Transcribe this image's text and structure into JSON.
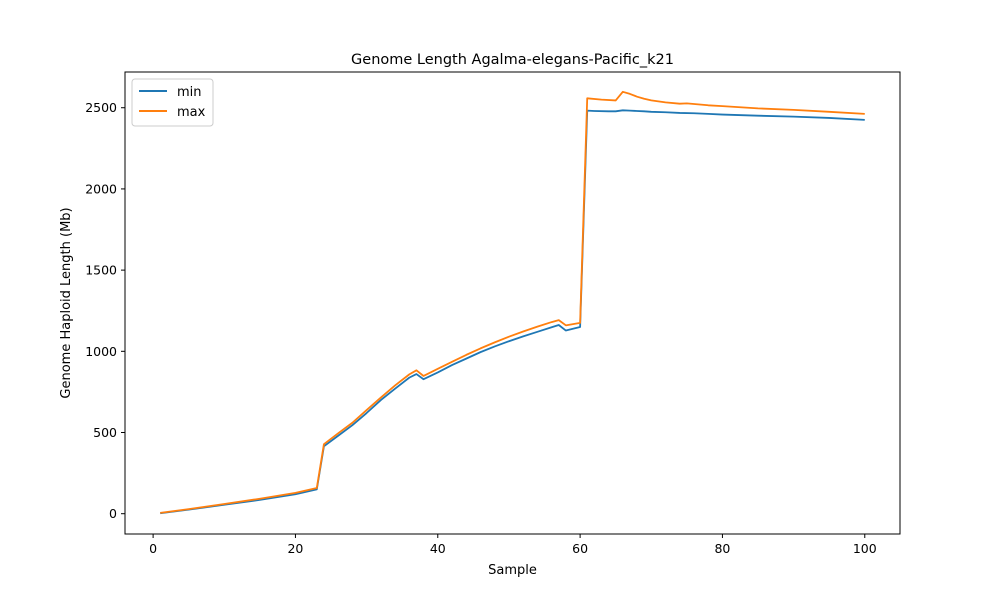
{
  "chart_data": {
    "type": "line",
    "title": "Genome Length Agalma-elegans-Pacific_k21",
    "xlabel": "Sample",
    "ylabel": "Genome Haploid Length (Mb)",
    "xlim": [
      -3.95,
      104.95
    ],
    "ylim": [
      -125,
      2720
    ],
    "xticks": [
      0,
      20,
      40,
      60,
      80,
      100
    ],
    "yticks": [
      0,
      500,
      1000,
      1500,
      2000,
      2500
    ],
    "legend": "top-left",
    "grid": false,
    "series": [
      {
        "name": "min",
        "color": "#1f77b4",
        "points": [
          [
            1,
            3
          ],
          [
            5,
            25
          ],
          [
            10,
            55
          ],
          [
            15,
            85
          ],
          [
            20,
            120
          ],
          [
            23,
            150
          ],
          [
            24,
            415
          ],
          [
            26,
            480
          ],
          [
            28,
            545
          ],
          [
            30,
            620
          ],
          [
            32,
            700
          ],
          [
            34,
            770
          ],
          [
            36,
            838
          ],
          [
            37,
            860
          ],
          [
            38,
            828
          ],
          [
            40,
            870
          ],
          [
            42,
            915
          ],
          [
            44,
            955
          ],
          [
            46,
            995
          ],
          [
            48,
            1030
          ],
          [
            50,
            1062
          ],
          [
            52,
            1092
          ],
          [
            54,
            1120
          ],
          [
            56,
            1148
          ],
          [
            57,
            1162
          ],
          [
            58,
            1128
          ],
          [
            60,
            1150
          ],
          [
            61,
            2482
          ],
          [
            62,
            2480
          ],
          [
            64,
            2478
          ],
          [
            65,
            2478
          ],
          [
            66,
            2484
          ],
          [
            67,
            2482
          ],
          [
            68,
            2480
          ],
          [
            69,
            2478
          ],
          [
            70,
            2475
          ],
          [
            72,
            2472
          ],
          [
            74,
            2468
          ],
          [
            76,
            2466
          ],
          [
            78,
            2462
          ],
          [
            80,
            2458
          ],
          [
            85,
            2451
          ],
          [
            90,
            2445
          ],
          [
            95,
            2437
          ],
          [
            100,
            2425
          ]
        ]
      },
      {
        "name": "max",
        "color": "#ff7f0e",
        "points": [
          [
            1,
            5
          ],
          [
            5,
            28
          ],
          [
            10,
            60
          ],
          [
            15,
            92
          ],
          [
            20,
            128
          ],
          [
            23,
            158
          ],
          [
            24,
            428
          ],
          [
            26,
            495
          ],
          [
            28,
            560
          ],
          [
            30,
            638
          ],
          [
            32,
            715
          ],
          [
            34,
            790
          ],
          [
            36,
            858
          ],
          [
            37,
            883
          ],
          [
            38,
            848
          ],
          [
            40,
            892
          ],
          [
            42,
            935
          ],
          [
            44,
            978
          ],
          [
            46,
            1018
          ],
          [
            48,
            1055
          ],
          [
            50,
            1090
          ],
          [
            52,
            1122
          ],
          [
            54,
            1152
          ],
          [
            56,
            1180
          ],
          [
            57,
            1192
          ],
          [
            58,
            1160
          ],
          [
            60,
            1175
          ],
          [
            61,
            2558
          ],
          [
            63,
            2550
          ],
          [
            65,
            2545
          ],
          [
            66,
            2598
          ],
          [
            67,
            2585
          ],
          [
            68,
            2568
          ],
          [
            69,
            2555
          ],
          [
            70,
            2545
          ],
          [
            72,
            2533
          ],
          [
            74,
            2525
          ],
          [
            75,
            2527
          ],
          [
            76,
            2523
          ],
          [
            78,
            2515
          ],
          [
            80,
            2510
          ],
          [
            85,
            2496
          ],
          [
            90,
            2487
          ],
          [
            95,
            2475
          ],
          [
            100,
            2462
          ]
        ]
      }
    ]
  }
}
